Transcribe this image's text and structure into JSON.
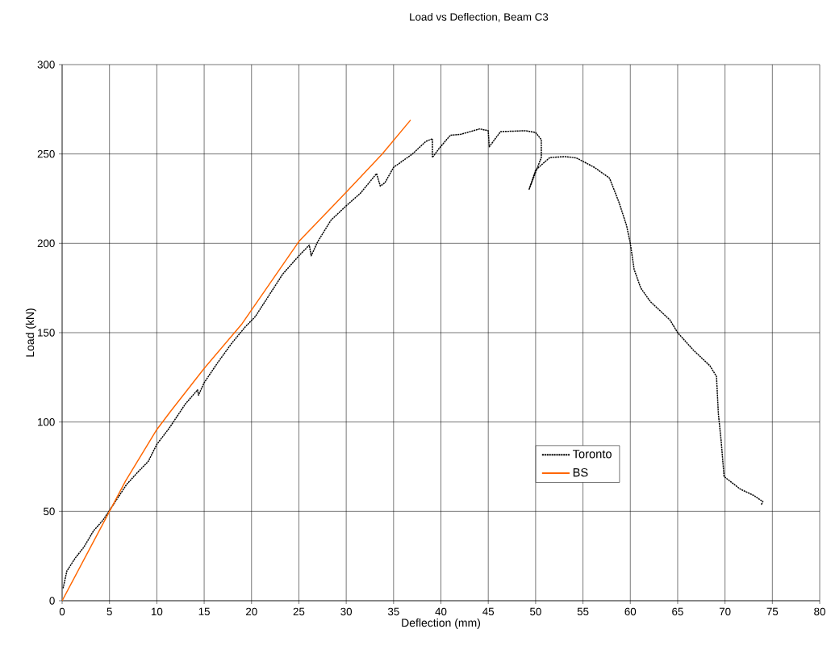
{
  "chart_data": {
    "type": "line",
    "title": "Load vs Deflection, Beam C3",
    "xlabel": "Deflection (mm)",
    "ylabel": "Load (kN)",
    "xlim": [
      0,
      80
    ],
    "ylim": [
      0,
      300
    ],
    "xticks": [
      0,
      5,
      10,
      15,
      20,
      25,
      30,
      35,
      40,
      45,
      50,
      55,
      60,
      65,
      70,
      75,
      80
    ],
    "yticks": [
      0,
      50,
      100,
      150,
      200,
      250,
      300
    ],
    "grid": true,
    "legend": "center right",
    "marker": "none",
    "series": [
      {
        "name": "Toronto",
        "color": "#000000",
        "line_style": "dotted",
        "x": [
          0.1,
          0.5,
          1.4,
          2.3,
          3.3,
          4.3,
          5,
          6.8,
          8,
          9.1,
          10,
          11.3,
          13,
          14.3,
          14.4,
          15,
          16.4,
          17.9,
          19.3,
          20.4,
          23.3,
          25,
          26.1,
          26.3,
          27,
          28.4,
          30,
          31.5,
          33.2,
          33.6,
          34.1,
          35,
          37,
          38.4,
          39.1,
          39.1,
          39.8,
          41,
          42.1,
          44.1,
          45,
          45.1,
          46.3,
          48.9,
          50,
          50.6,
          50.6,
          49.3,
          50,
          51.5,
          53.1,
          54.3,
          56.2,
          57.8,
          58.8,
          59.6,
          60,
          60.4,
          61.1,
          62.1,
          64.2,
          65,
          66.7,
          68.4,
          69.1,
          69.3,
          69.6,
          69.9,
          71.6,
          73,
          74,
          73.8
        ],
        "values": [
          7,
          16.6,
          24,
          30,
          39,
          45,
          50.5,
          65,
          72,
          78,
          87.5,
          96.5,
          110,
          118,
          115,
          122,
          133,
          144,
          153,
          159,
          182.8,
          193,
          199,
          193,
          201,
          213,
          221,
          228,
          239,
          232,
          234,
          242.5,
          250,
          257,
          258.5,
          248,
          253,
          260.5,
          261,
          264,
          263,
          254,
          262.5,
          263,
          262,
          258,
          248,
          230,
          241,
          248,
          248.5,
          247.8,
          242.5,
          236.5,
          223,
          210,
          200,
          185.5,
          175,
          167.5,
          157,
          150,
          140,
          131.5,
          125.5,
          104.5,
          89,
          69.5,
          62.5,
          59,
          55.5,
          53.5
        ]
      },
      {
        "name": "BS",
        "color": "#ff6600",
        "line_style": "solid",
        "x": [
          0,
          5,
          6.7,
          10,
          11.4,
          15,
          19,
          25,
          30,
          33.8,
          36.8
        ],
        "values": [
          0,
          50,
          67,
          95.8,
          105.6,
          130,
          155,
          201,
          228.6,
          250,
          269
        ]
      }
    ]
  }
}
